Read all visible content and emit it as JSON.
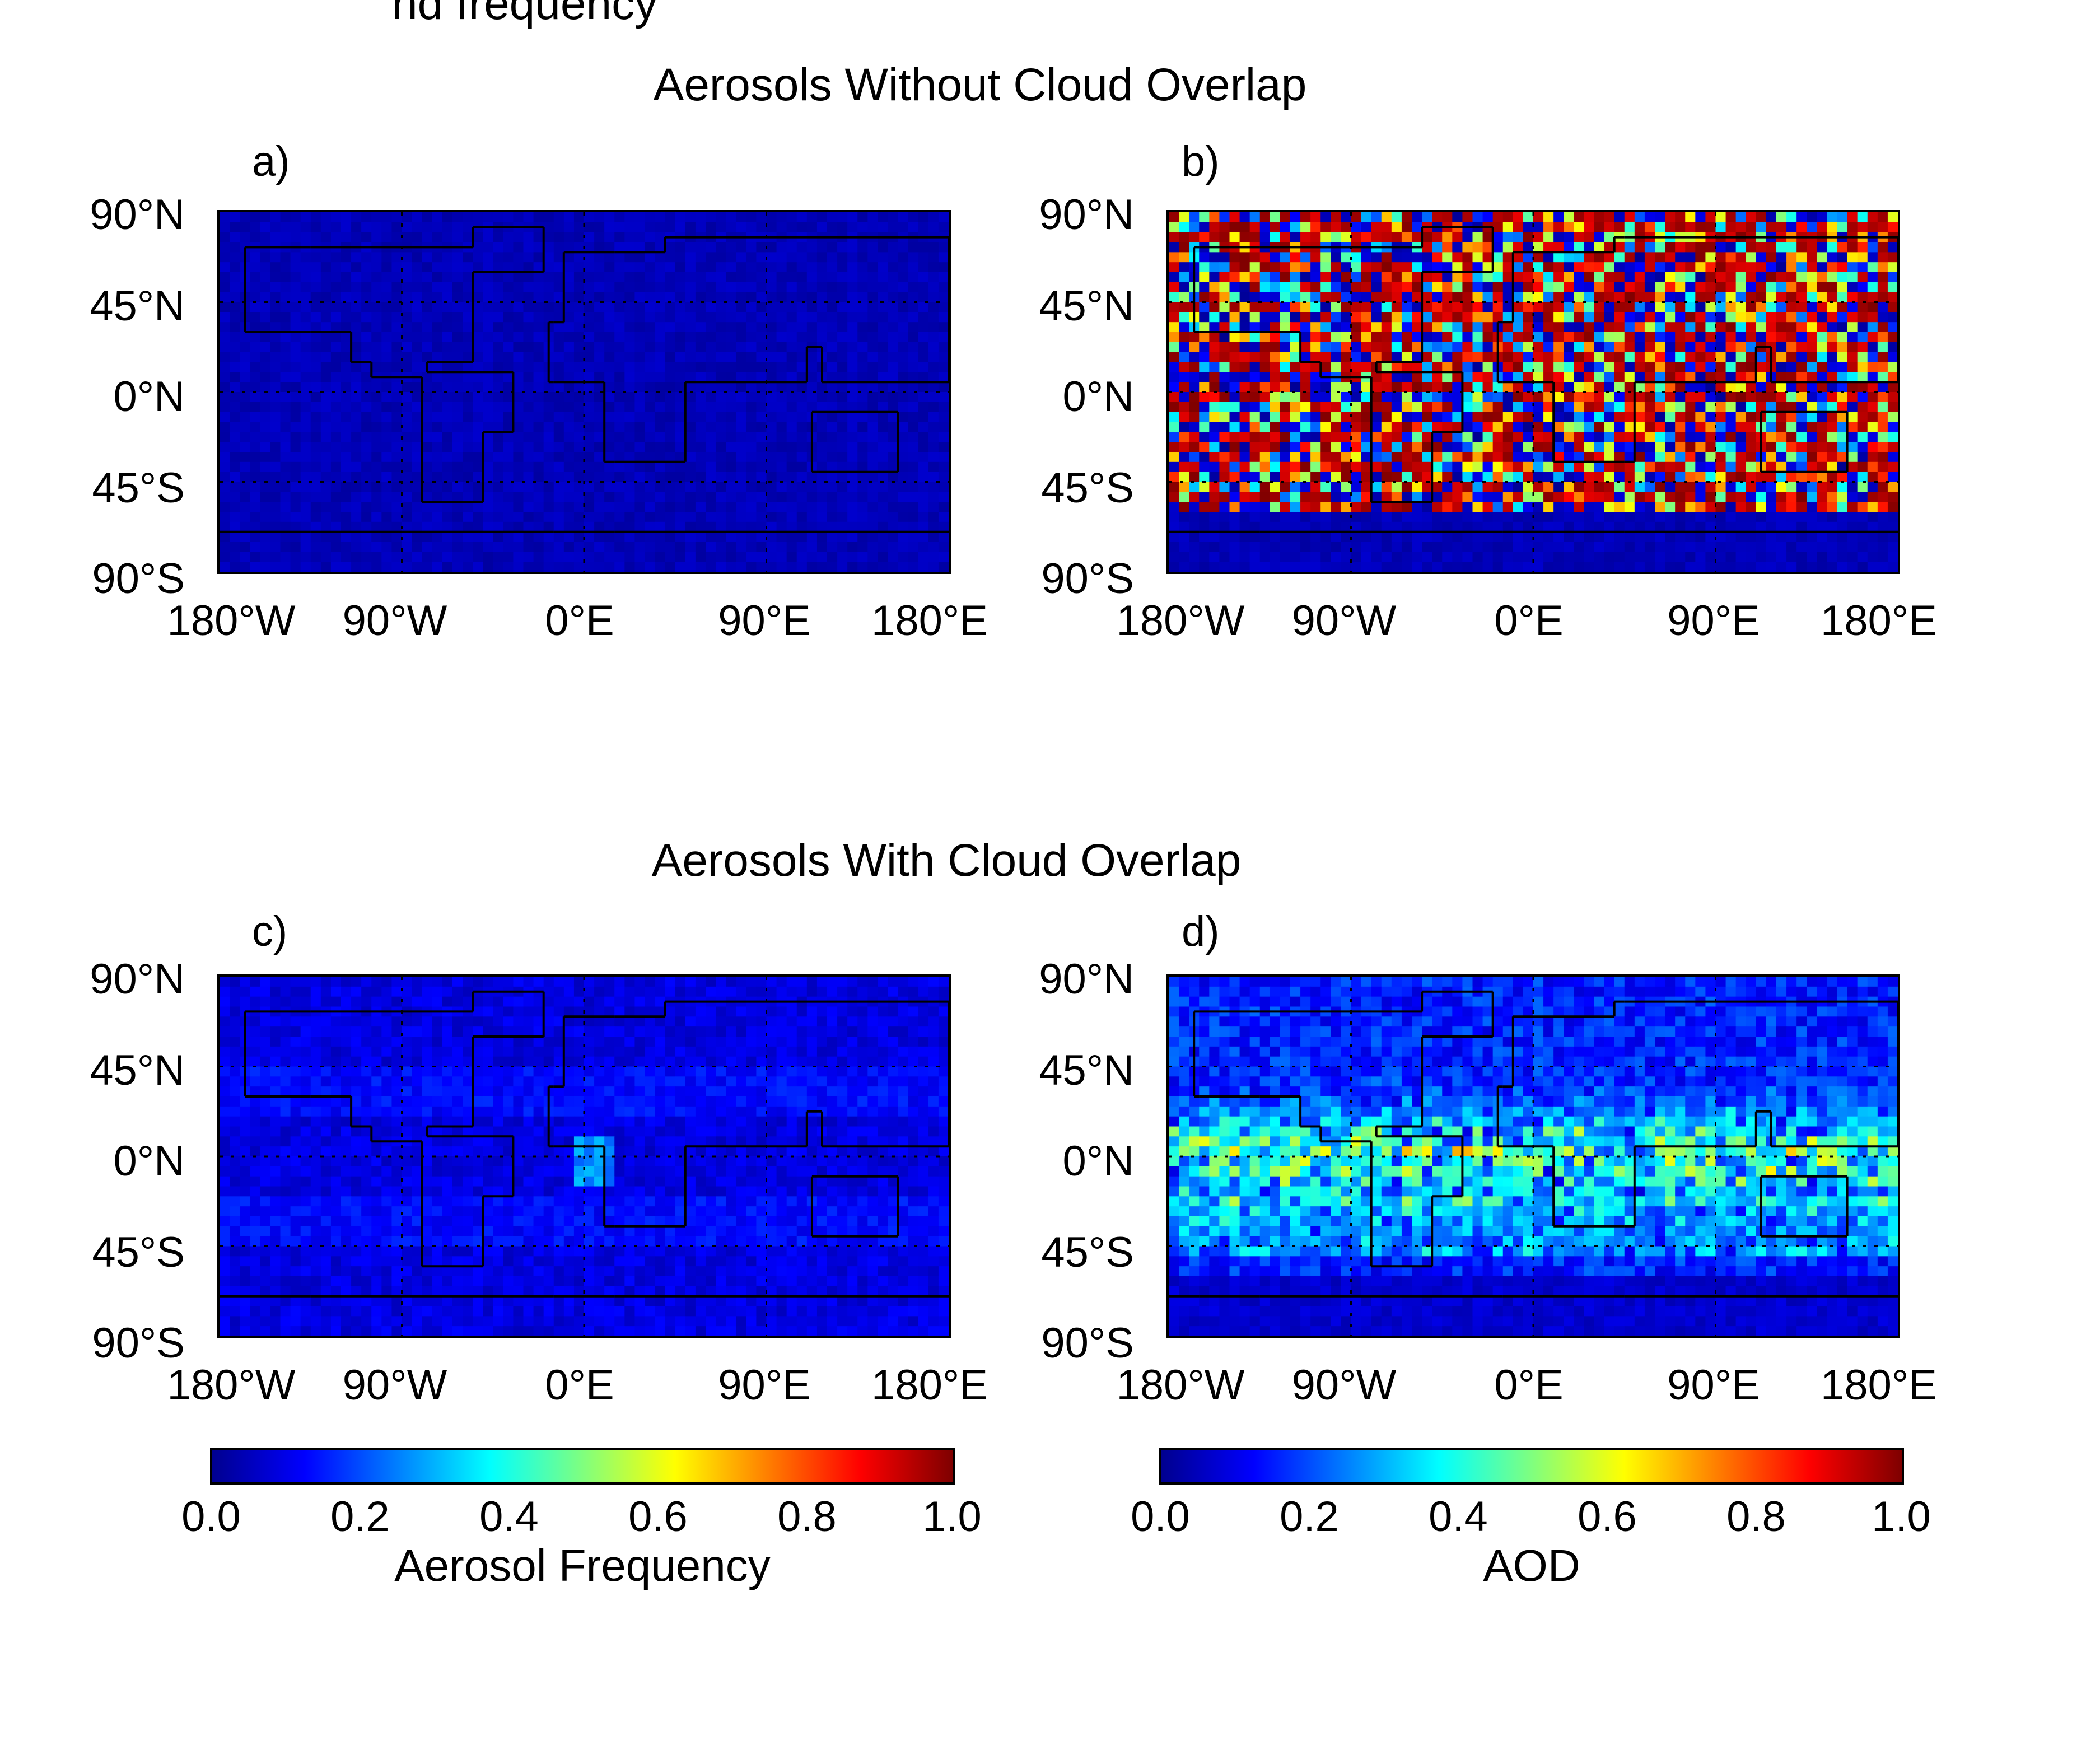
{
  "top_fragment": "nd frequency",
  "sections": [
    {
      "title": "Aerosols Without Cloud Overlap"
    },
    {
      "title": "Aerosols With Cloud Overlap"
    }
  ],
  "panels": [
    {
      "label": "a)",
      "variable": "Aerosol Frequency",
      "pattern": "uniform-low",
      "value_range": [
        0.0,
        0.08
      ]
    },
    {
      "label": "b)",
      "variable": "AOD",
      "pattern": "noisy-high",
      "value_range": [
        0.0,
        1.0
      ]
    },
    {
      "label": "c)",
      "variable": "Aerosol Frequency",
      "pattern": "low-with-africa-hotspot",
      "value_range": [
        0.0,
        0.3
      ]
    },
    {
      "label": "d)",
      "variable": "AOD",
      "pattern": "tropical-band",
      "value_range": [
        0.0,
        0.7
      ]
    }
  ],
  "axes": {
    "lat_ticks": [
      "90°N",
      "45°N",
      "0°N",
      "45°S",
      "90°S"
    ],
    "lon_ticks": [
      "180°W",
      "90°W",
      "0°E",
      "90°E",
      "180°E"
    ],
    "lat_range": [
      -90,
      90
    ],
    "lon_range": [
      -180,
      180
    ],
    "grid": "dotted"
  },
  "colorbars": [
    {
      "ticks": [
        "0.0",
        "0.2",
        "0.4",
        "0.6",
        "0.8",
        "1.0"
      ],
      "label": "Aerosol Frequency",
      "range": [
        0.0,
        1.0
      ]
    },
    {
      "ticks": [
        "0.0",
        "0.2",
        "0.4",
        "0.6",
        "0.8",
        "1.0"
      ],
      "label": "AOD",
      "range": [
        0.0,
        1.0
      ]
    }
  ],
  "colors": {
    "colormap": [
      "#00008f",
      "#0000ff",
      "#007fff",
      "#00ffff",
      "#7fff7f",
      "#ffff00",
      "#ff7f00",
      "#ff0000",
      "#7f0000"
    ],
    "coastline": "#000000"
  }
}
